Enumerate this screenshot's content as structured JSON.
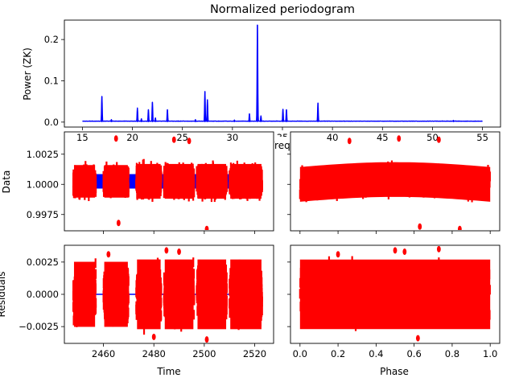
{
  "chart_data": [
    {
      "id": "periodogram",
      "type": "line",
      "title": "Normalized periodogram",
      "xlabel": "Freque",
      "ylabel": "Power (ZK)",
      "xlim": [
        13.2,
        56.8
      ],
      "ylim": [
        -0.012,
        0.247
      ],
      "xticks": [
        15,
        20,
        25,
        30,
        35,
        40,
        45,
        50,
        55
      ],
      "yticks": [
        0.0,
        0.1,
        0.2
      ],
      "ytick_labels": [
        "0.0",
        "0.1",
        "0.2"
      ],
      "color": "#0000ff",
      "grid": false,
      "baseline": 0.002,
      "peaks": [
        {
          "x": 16.95,
          "y": 0.062
        },
        {
          "x": 17.9,
          "y": 0.006
        },
        {
          "x": 20.5,
          "y": 0.034
        },
        {
          "x": 20.9,
          "y": 0.008
        },
        {
          "x": 21.6,
          "y": 0.03
        },
        {
          "x": 22.0,
          "y": 0.048
        },
        {
          "x": 22.3,
          "y": 0.01
        },
        {
          "x": 23.5,
          "y": 0.03
        },
        {
          "x": 26.3,
          "y": 0.006
        },
        {
          "x": 27.25,
          "y": 0.074
        },
        {
          "x": 27.5,
          "y": 0.054
        },
        {
          "x": 30.2,
          "y": 0.005
        },
        {
          "x": 31.7,
          "y": 0.02
        },
        {
          "x": 32.5,
          "y": 0.235
        },
        {
          "x": 32.85,
          "y": 0.015
        },
        {
          "x": 35.05,
          "y": 0.031
        },
        {
          "x": 35.4,
          "y": 0.03
        },
        {
          "x": 38.55,
          "y": 0.046
        },
        {
          "x": 52.1,
          "y": 0.004
        }
      ]
    },
    {
      "id": "data-vs-time",
      "type": "scatter",
      "xlabel": "",
      "ylabel": "Data",
      "xlim": [
        2444.5,
        2527.5
      ],
      "ylim": [
        0.99615,
        1.00435
      ],
      "xticks": [
        2460,
        2480,
        2500,
        2520
      ],
      "yticks": [
        0.9975,
        1.0,
        1.0025
      ],
      "ytick_labels": [
        "0.9975",
        "1.0000",
        "1.0025"
      ],
      "show_xtick_labels": false,
      "point_color": "#ff0000",
      "model_color": "#0000ff",
      "segments": [
        {
          "x": [
            2448,
            2457
          ],
          "amplitude": 0.0015
        },
        {
          "x": [
            2460,
            2470
          ],
          "amplitude": 0.0015
        },
        {
          "x": [
            2473,
            2483
          ],
          "amplitude": 0.0016
        },
        {
          "x": [
            2484,
            2496
          ],
          "amplitude": 0.0016
        },
        {
          "x": [
            2497,
            2509
          ],
          "amplitude": 0.0016
        },
        {
          "x": [
            2510,
            2523
          ],
          "amplitude": 0.0016
        }
      ],
      "outliers": [
        {
          "x": 2465,
          "y": 1.0038
        },
        {
          "x": 2488,
          "y": 1.0037
        },
        {
          "x": 2494,
          "y": 1.0036
        },
        {
          "x": 2501,
          "y": 0.9963
        },
        {
          "x": 2466,
          "y": 0.9968
        }
      ]
    },
    {
      "id": "data-vs-phase",
      "type": "scatter",
      "xlabel": "",
      "ylabel": "",
      "xlim": [
        -0.05,
        1.05
      ],
      "ylim": [
        0.99615,
        1.00435
      ],
      "xticks": [
        0.0,
        0.2,
        0.4,
        0.6,
        0.8,
        1.0
      ],
      "yticks": [
        0.9975,
        1.0,
        1.0025
      ],
      "show_xtick_labels": false,
      "show_ytick_labels": false,
      "point_color": "#ff0000",
      "band": {
        "x": [
          0.0,
          1.0
        ],
        "center_mean": 1.0,
        "amplitude": 0.0016,
        "arch": 0.0004
      },
      "outliers": [
        {
          "x": 0.26,
          "y": 1.0036
        },
        {
          "x": 0.52,
          "y": 1.0038
        },
        {
          "x": 0.73,
          "y": 1.0037
        },
        {
          "x": 0.63,
          "y": 0.9965
        },
        {
          "x": 0.84,
          "y": 0.9963
        }
      ]
    },
    {
      "id": "residuals-vs-time",
      "type": "scatter",
      "xlabel": "Time",
      "ylabel": "Residuals",
      "xlim": [
        2444.5,
        2527.5
      ],
      "ylim": [
        -0.0038,
        0.0038
      ],
      "xticks": [
        2460,
        2480,
        2500,
        2520
      ],
      "xtick_labels": [
        "2460",
        "2480",
        "2500",
        "2520"
      ],
      "yticks": [
        -0.0025,
        0.0,
        0.0025
      ],
      "ytick_labels": [
        "−0.0025",
        "0.0000",
        "0.0025"
      ],
      "point_color": "#ff0000",
      "model_color": "#0000ff",
      "segments": [
        {
          "x": [
            2448,
            2457
          ],
          "amplitude": 0.0028
        },
        {
          "x": [
            2460,
            2470
          ],
          "amplitude": 0.0028
        },
        {
          "x": [
            2473,
            2483
          ],
          "amplitude": 0.003
        },
        {
          "x": [
            2484,
            2496
          ],
          "amplitude": 0.003
        },
        {
          "x": [
            2497,
            2509
          ],
          "amplitude": 0.003
        },
        {
          "x": [
            2510,
            2523
          ],
          "amplitude": 0.003
        }
      ],
      "outliers": [
        {
          "x": 2462,
          "y": 0.0031
        },
        {
          "x": 2485,
          "y": 0.0034
        },
        {
          "x": 2490,
          "y": 0.0033
        },
        {
          "x": 2480,
          "y": -0.0033
        },
        {
          "x": 2501,
          "y": -0.0035
        }
      ]
    },
    {
      "id": "residuals-vs-phase",
      "type": "scatter",
      "xlabel": "Phase",
      "ylabel": "",
      "xlim": [
        -0.05,
        1.05
      ],
      "ylim": [
        -0.0038,
        0.0038
      ],
      "xticks": [
        0.0,
        0.2,
        0.4,
        0.6,
        0.8,
        1.0
      ],
      "xtick_labels": [
        "0.0",
        "0.2",
        "0.4",
        "0.6",
        "0.8",
        "1.0"
      ],
      "yticks": [
        -0.0025,
        0.0,
        0.0025
      ],
      "show_ytick_labels": false,
      "point_color": "#ff0000",
      "band": {
        "x": [
          0.0,
          1.0
        ],
        "center_mean": 0.0,
        "amplitude": 0.003,
        "arch": 0.0
      },
      "outliers": [
        {
          "x": 0.2,
          "y": 0.0031
        },
        {
          "x": 0.5,
          "y": 0.0034
        },
        {
          "x": 0.55,
          "y": 0.0033
        },
        {
          "x": 0.73,
          "y": 0.0035
        },
        {
          "x": 0.62,
          "y": -0.0034
        }
      ]
    }
  ]
}
